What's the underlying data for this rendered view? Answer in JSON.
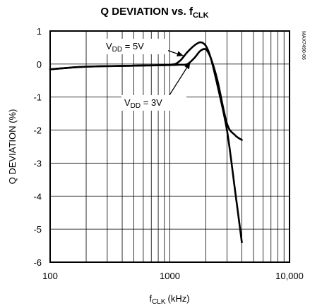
{
  "chart_data": {
    "type": "line",
    "title": "Q DEVIATION vs. fCLK",
    "title_main": "Q DEVIATION vs. f",
    "title_sub": "CLK",
    "xlabel_main": "f",
    "xlabel_sub": "CLK",
    "xlabel_unit": "(kHz)",
    "ylabel": "Q DEVIATION (%)",
    "xscale": "log",
    "xlim": [
      100,
      10000
    ],
    "ylim": [
      -6,
      1
    ],
    "grid": true,
    "x_ticks": [
      {
        "value": 100,
        "label": "100"
      },
      {
        "value": 1000,
        "label": "1000"
      },
      {
        "value": 10000,
        "label": "10,000"
      }
    ],
    "y_ticks": [
      {
        "value": 1,
        "label": "1"
      },
      {
        "value": 0,
        "label": "0"
      },
      {
        "value": -1,
        "label": "-1"
      },
      {
        "value": -2,
        "label": "-2"
      },
      {
        "value": -3,
        "label": "-3"
      },
      {
        "value": -4,
        "label": "-4"
      },
      {
        "value": -5,
        "label": "-5"
      },
      {
        "value": -6,
        "label": "-6"
      }
    ],
    "series": [
      {
        "name": "VDD = 5V",
        "label_main": "V",
        "label_sub": "DD",
        "label_rest": " = 5V",
        "x": [
          100,
          200,
          500,
          1000,
          1200,
          1400,
          1600,
          1800,
          2000,
          2200,
          2500,
          3000,
          3500,
          4000
        ],
        "y": [
          -0.16,
          -0.08,
          -0.05,
          -0.02,
          0.08,
          0.36,
          0.56,
          0.66,
          0.55,
          0.18,
          -0.65,
          -2.0,
          -3.8,
          -5.4
        ]
      },
      {
        "name": "VDD = 3V",
        "label_main": "V",
        "label_sub": "DD",
        "label_rest": " = 3V",
        "x": [
          100,
          200,
          500,
          1000,
          1200,
          1400,
          1600,
          1800,
          2000,
          2200,
          2500,
          3000,
          3500,
          4000
        ],
        "y": [
          -0.16,
          -0.08,
          -0.05,
          -0.03,
          -0.02,
          0.0,
          0.18,
          0.4,
          0.44,
          0.18,
          -0.5,
          -1.8,
          -2.15,
          -2.3
        ]
      }
    ],
    "side_label": "MAX7490-06"
  }
}
